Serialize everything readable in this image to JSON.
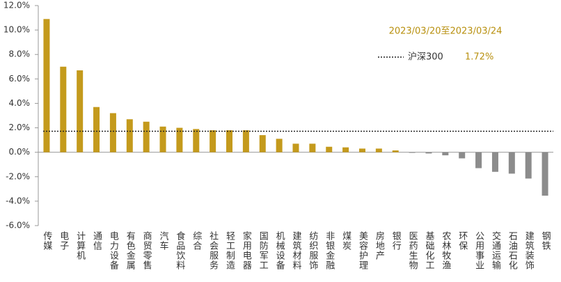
{
  "chart_data": {
    "type": "bar",
    "subtitle": "2023/03/20至2023/03/24",
    "categories": [
      "传媒",
      "电子",
      "计算机",
      "通信",
      "电力设备",
      "有色金属",
      "商贸零售",
      "汽车",
      "食品饮料",
      "综合",
      "社会服务",
      "轻工制造",
      "家用电器",
      "国防军工",
      "机械设备",
      "建筑材料",
      "纺织服饰",
      "非银金融",
      "煤炭",
      "美容护理",
      "房地产",
      "银行",
      "医药生物",
      "基础化工",
      "农林牧渔",
      "环保",
      "公用事业",
      "交通运输",
      "石油石化",
      "建筑装饰",
      "钢铁"
    ],
    "values": [
      10.9,
      7.0,
      6.7,
      3.7,
      3.2,
      2.7,
      2.5,
      2.1,
      2.0,
      1.9,
      1.8,
      1.8,
      1.8,
      1.4,
      1.1,
      0.7,
      0.7,
      0.45,
      0.4,
      0.3,
      0.3,
      0.15,
      -0.05,
      -0.1,
      -0.25,
      -0.5,
      -1.3,
      -1.6,
      -1.75,
      -2.15,
      -3.55
    ],
    "positive_color": "#c49a1c",
    "negative_color": "#8c8c8c",
    "reference": {
      "name": "沪深300",
      "value": 1.72,
      "value_label": "1.72%"
    },
    "ylim": [
      -6,
      12
    ],
    "yticks": [
      {
        "value": -6,
        "label": "-6.0%"
      },
      {
        "value": -4,
        "label": "-4.0%"
      },
      {
        "value": -2,
        "label": "-2.0%"
      },
      {
        "value": 0,
        "label": "0.0%"
      },
      {
        "value": 2,
        "label": "2.0%"
      },
      {
        "value": 4,
        "label": "4.0%"
      },
      {
        "value": 6,
        "label": "6.0%"
      },
      {
        "value": 8,
        "label": "8.0%"
      },
      {
        "value": 10,
        "label": "10.0%"
      },
      {
        "value": 12,
        "label": "12.0%"
      }
    ],
    "grid": false
  }
}
